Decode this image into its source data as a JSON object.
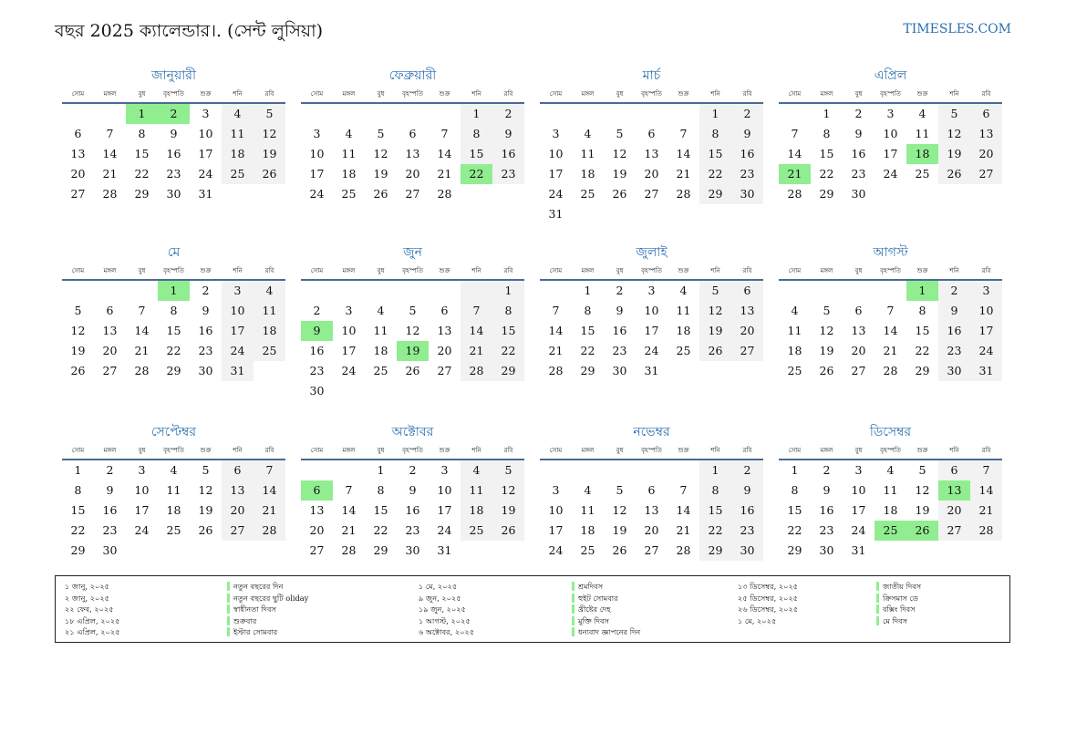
{
  "header": {
    "title": "বছর 2025 ক্যালেন্ডার।. (সেন্ট লুসিয়া)",
    "site": "TIMESLES.COM"
  },
  "weekdays": [
    "সোম",
    "মঙ্গল",
    "বুধ",
    "বৃহস্পতি",
    "শুক্র",
    "শনি",
    "রবি"
  ],
  "months": [
    {
      "name": "জানুয়ারী",
      "offset": 2,
      "days": 31,
      "holidays": [
        1,
        2
      ]
    },
    {
      "name": "ফেব্রুয়ারী",
      "offset": 5,
      "days": 28,
      "holidays": [
        22
      ]
    },
    {
      "name": "মার্চ",
      "offset": 5,
      "days": 31,
      "holidays": []
    },
    {
      "name": "এপ্রিল",
      "offset": 1,
      "days": 30,
      "holidays": [
        18,
        21
      ]
    },
    {
      "name": "মে",
      "offset": 3,
      "days": 31,
      "holidays": [
        1
      ]
    },
    {
      "name": "জুন",
      "offset": 6,
      "days": 30,
      "holidays": [
        9,
        19
      ]
    },
    {
      "name": "জুলাই",
      "offset": 1,
      "days": 31,
      "holidays": []
    },
    {
      "name": "আগস্ট",
      "offset": 4,
      "days": 31,
      "holidays": [
        1
      ]
    },
    {
      "name": "সেপ্টেম্বর",
      "offset": 0,
      "days": 30,
      "holidays": []
    },
    {
      "name": "অক্টোবর",
      "offset": 2,
      "days": 31,
      "holidays": [
        6
      ]
    },
    {
      "name": "নভেম্বর",
      "offset": 5,
      "days": 30,
      "holidays": []
    },
    {
      "name": "ডিসেম্বর",
      "offset": 0,
      "days": 31,
      "holidays": [
        13,
        25,
        26
      ]
    }
  ],
  "legend": [
    [
      {
        "date": "১ জানু, ২০২৫",
        "name": "নতুন বছরের দিন"
      },
      {
        "date": "২ জানু, ২০২৫",
        "name": "নতুন বছরের ছুটি oliday"
      },
      {
        "date": "২২ ফেব, ২০২৫",
        "name": "স্বাধীনতা দিবস"
      },
      {
        "date": "১৮ এপ্রিল, ২০২৫",
        "name": "শুক্রবার"
      },
      {
        "date": "২১ এপ্রিল, ২০২৫",
        "name": "ইস্টার সোমবার"
      }
    ],
    [
      {
        "date": "১ মে, ২০২৫",
        "name": "শ্রমদিবস"
      },
      {
        "date": "৯ জুন, ২০২৫",
        "name": "হুইট সোমবার"
      },
      {
        "date": "১৯ জুন, ২০২৫",
        "name": "খ্রীষ্টের দেহ"
      },
      {
        "date": "১ আগস্ট, ২০২৫",
        "name": "মুক্তি দিবস"
      },
      {
        "date": "৬ অক্টোবর, ২০২৫",
        "name": "ধন্যবাদ জ্ঞাপনের দিন"
      }
    ],
    [
      {
        "date": "১৩ ডিসেম্বর, ২০২৫",
        "name": "জাতীয় দিবস"
      },
      {
        "date": "২৫ ডিসেম্বর, ২০২৫",
        "name": "ক্রিসমাস ডে"
      },
      {
        "date": "২৬ ডিসেম্বর, ২০২৫",
        "name": "বক্সিং দিবস"
      },
      {
        "date": "১ মে, ২০২৫",
        "name": "মে দিবস"
      }
    ]
  ]
}
